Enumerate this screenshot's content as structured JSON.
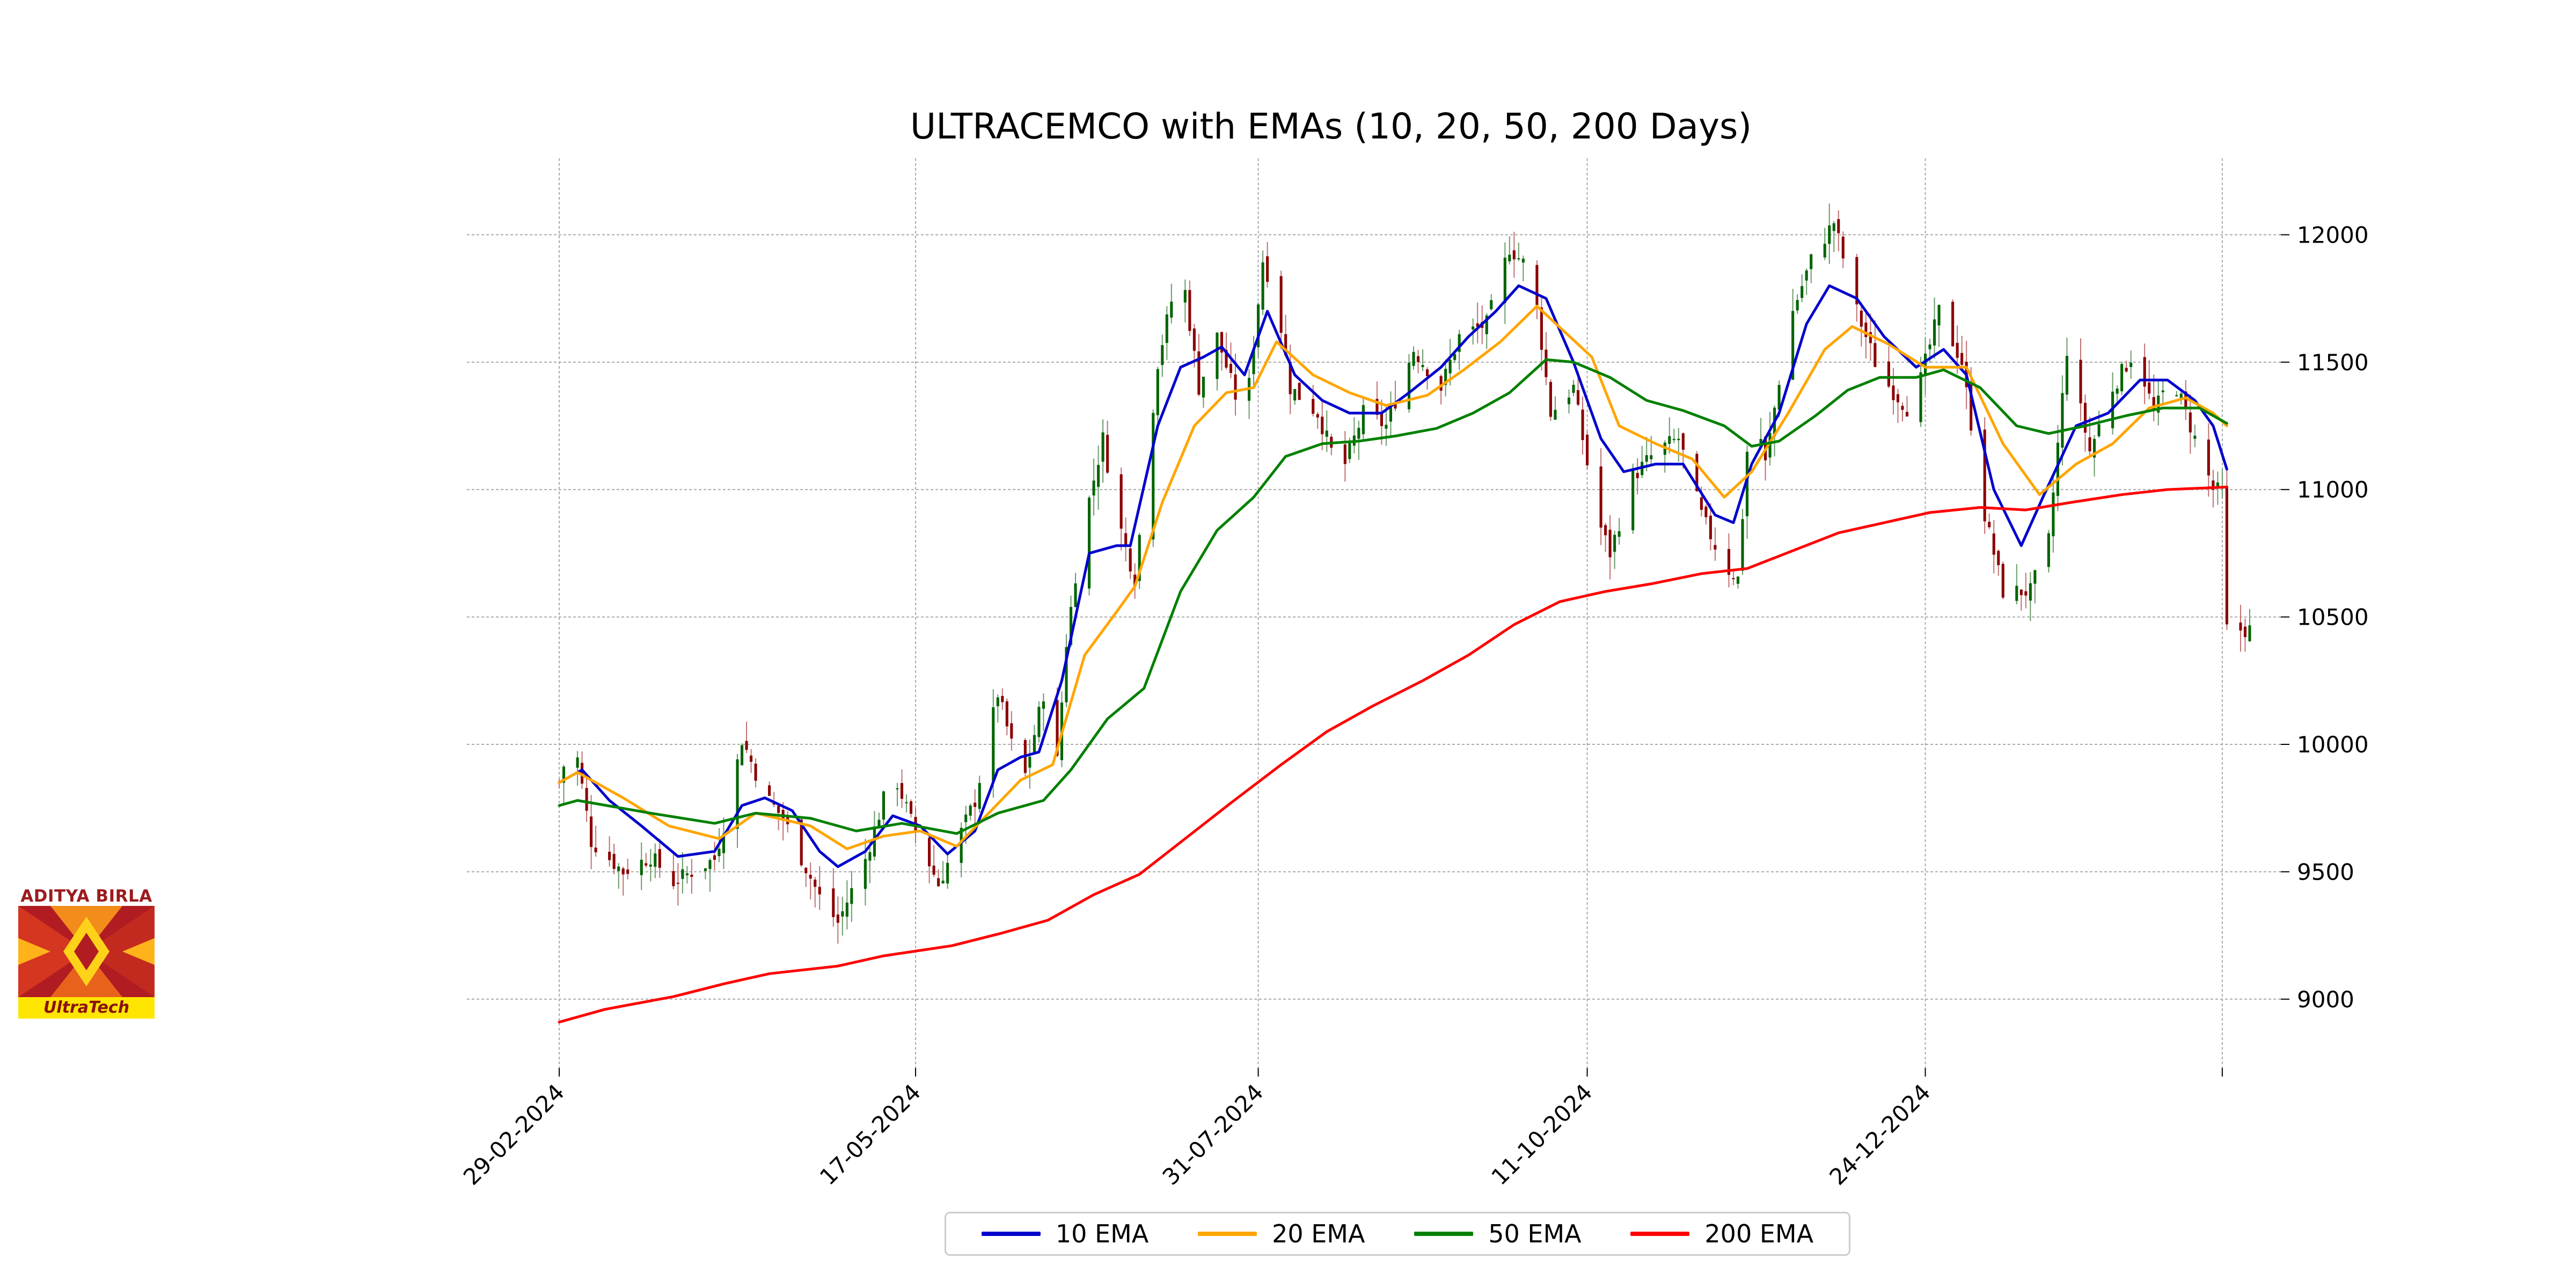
{
  "logo": {
    "top_text": "ADITYA BIRLA",
    "band_text": "UltraTech",
    "colors": {
      "red": "#b01c22",
      "orange": "#f28c1a",
      "yellow": "#ffe600"
    }
  },
  "chart_data": {
    "type": "candlestick",
    "title": "ULTRACEMCO with EMAs (10, 20, 50, 200 Days)",
    "xlabel": "",
    "ylabel": "",
    "x_range": [
      "2024-02-29",
      "2025-03-05"
    ],
    "ylim": [
      8730,
      12300
    ],
    "y_ticks": [
      9000,
      9500,
      10000,
      10500,
      11000,
      11500,
      12000
    ],
    "y_tick_labels": [
      "9000",
      "9500",
      "10000",
      "10500",
      "11000",
      "11500",
      "12000"
    ],
    "x_ticks": [
      "2024-02-29",
      "2024-05-17",
      "2024-07-31",
      "2024-10-11",
      "2024-12-24",
      "2025-02-27"
    ],
    "x_tick_labels": [
      "29-02-2024",
      "17-05-2024",
      "31-07-2024",
      "11-10-2024",
      "24-12-2024",
      ""
    ],
    "grid": true,
    "legend_position": "bottom-center",
    "candle_colors": {
      "up": "#006400",
      "down": "#8b0000"
    },
    "close_anchors": [
      [
        "2024-02-29",
        9850
      ],
      [
        "2024-03-03",
        10050
      ],
      [
        "2024-03-07",
        9620
      ],
      [
        "2024-03-14",
        9500
      ],
      [
        "2024-03-20",
        9560
      ],
      [
        "2024-03-25",
        9460
      ],
      [
        "2024-04-03",
        9550
      ],
      [
        "2024-04-06",
        9750
      ],
      [
        "2024-04-09",
        10020
      ],
      [
        "2024-04-14",
        9800
      ],
      [
        "2024-04-18",
        9710
      ],
      [
        "2024-04-26",
        9400
      ],
      [
        "2024-04-30",
        9300
      ],
      [
        "2024-05-06",
        9550
      ],
      [
        "2024-05-12",
        9900
      ],
      [
        "2024-05-16",
        9700
      ],
      [
        "2024-05-22",
        9450
      ],
      [
        "2024-05-30",
        9780
      ],
      [
        "2024-06-04",
        10200
      ],
      [
        "2024-06-07",
        10000
      ],
      [
        "2024-06-10",
        9880
      ],
      [
        "2024-06-14",
        10200
      ],
      [
        "2024-06-16",
        9700
      ],
      [
        "2024-06-19",
        10400
      ],
      [
        "2024-06-22",
        10800
      ],
      [
        "2024-06-27",
        11200
      ],
      [
        "2024-06-30",
        10900
      ],
      [
        "2024-07-04",
        10650
      ],
      [
        "2024-07-09",
        11500
      ],
      [
        "2024-07-14",
        11900
      ],
      [
        "2024-07-18",
        11400
      ],
      [
        "2024-07-22",
        11600
      ],
      [
        "2024-07-28",
        11250
      ],
      [
        "2024-08-01",
        11900
      ],
      [
        "2024-08-04",
        11750
      ],
      [
        "2024-08-07",
        11400
      ],
      [
        "2024-08-13",
        11300
      ],
      [
        "2024-08-18",
        11050
      ],
      [
        "2024-08-23",
        11300
      ],
      [
        "2024-08-28",
        11250
      ],
      [
        "2024-09-03",
        11550
      ],
      [
        "2024-09-09",
        11400
      ],
      [
        "2024-09-13",
        11600
      ],
      [
        "2024-09-19",
        11650
      ],
      [
        "2024-09-24",
        11950
      ],
      [
        "2024-09-29",
        11850
      ],
      [
        "2024-10-03",
        11300
      ],
      [
        "2024-10-08",
        11400
      ],
      [
        "2024-10-13",
        10900
      ],
      [
        "2024-10-16",
        10750
      ],
      [
        "2024-10-21",
        11050
      ],
      [
        "2024-10-26",
        11150
      ],
      [
        "2024-10-31",
        11200
      ],
      [
        "2024-11-05",
        10900
      ],
      [
        "2024-11-10",
        10700
      ],
      [
        "2024-11-13",
        10650
      ],
      [
        "2024-11-16",
        11400
      ],
      [
        "2024-11-19",
        11100
      ],
      [
        "2024-11-24",
        11650
      ],
      [
        "2024-11-29",
        11900
      ],
      [
        "2024-12-04",
        12050
      ],
      [
        "2024-12-09",
        11700
      ],
      [
        "2024-12-14",
        11450
      ],
      [
        "2024-12-21",
        11300
      ],
      [
        "2024-12-27",
        11700
      ],
      [
        "2025-01-01",
        11500
      ],
      [
        "2025-01-06",
        10900
      ],
      [
        "2025-01-10",
        10600
      ],
      [
        "2025-01-16",
        10600
      ],
      [
        "2025-01-20",
        10800
      ],
      [
        "2025-01-24",
        11550
      ],
      [
        "2025-01-29",
        11150
      ],
      [
        "2025-02-03",
        11400
      ],
      [
        "2025-02-08",
        11550
      ],
      [
        "2025-02-12",
        11300
      ],
      [
        "2025-02-16",
        11450
      ],
      [
        "2025-02-21",
        11200
      ],
      [
        "2025-02-25",
        11000
      ],
      [
        "2025-02-27",
        10990
      ],
      [
        "2025-02-28",
        10450
      ]
    ],
    "series": [
      {
        "name": "10 EMA",
        "color": "#0000cd",
        "points": [
          [
            "2024-02-29",
            9850
          ],
          [
            "2024-03-05",
            9900
          ],
          [
            "2024-03-11",
            9780
          ],
          [
            "2024-03-18",
            9680
          ],
          [
            "2024-03-26",
            9560
          ],
          [
            "2024-04-03",
            9580
          ],
          [
            "2024-04-09",
            9760
          ],
          [
            "2024-04-14",
            9790
          ],
          [
            "2024-04-20",
            9740
          ],
          [
            "2024-04-26",
            9580
          ],
          [
            "2024-04-30",
            9520
          ],
          [
            "2024-05-06",
            9580
          ],
          [
            "2024-05-12",
            9720
          ],
          [
            "2024-05-18",
            9680
          ],
          [
            "2024-05-24",
            9570
          ],
          [
            "2024-05-30",
            9660
          ],
          [
            "2024-06-04",
            9900
          ],
          [
            "2024-06-09",
            9950
          ],
          [
            "2024-06-13",
            9970
          ],
          [
            "2024-06-18",
            10250
          ],
          [
            "2024-06-24",
            10750
          ],
          [
            "2024-06-30",
            10780
          ],
          [
            "2024-07-03",
            10780
          ],
          [
            "2024-07-09",
            11250
          ],
          [
            "2024-07-14",
            11480
          ],
          [
            "2024-07-19",
            11520
          ],
          [
            "2024-07-23",
            11560
          ],
          [
            "2024-07-28",
            11450
          ],
          [
            "2024-08-02",
            11700
          ],
          [
            "2024-08-08",
            11450
          ],
          [
            "2024-08-14",
            11350
          ],
          [
            "2024-08-20",
            11300
          ],
          [
            "2024-08-27",
            11300
          ],
          [
            "2024-09-02",
            11380
          ],
          [
            "2024-09-09",
            11480
          ],
          [
            "2024-09-15",
            11600
          ],
          [
            "2024-09-21",
            11700
          ],
          [
            "2024-09-26",
            11800
          ],
          [
            "2024-10-02",
            11750
          ],
          [
            "2024-10-08",
            11500
          ],
          [
            "2024-10-14",
            11200
          ],
          [
            "2024-10-19",
            11070
          ],
          [
            "2024-10-26",
            11100
          ],
          [
            "2024-11-01",
            11100
          ],
          [
            "2024-11-08",
            10900
          ],
          [
            "2024-11-12",
            10870
          ],
          [
            "2024-11-16",
            11100
          ],
          [
            "2024-11-22",
            11300
          ],
          [
            "2024-11-28",
            11650
          ],
          [
            "2024-12-03",
            11800
          ],
          [
            "2024-12-09",
            11750
          ],
          [
            "2024-12-15",
            11600
          ],
          [
            "2024-12-22",
            11480
          ],
          [
            "2024-12-28",
            11550
          ],
          [
            "2025-01-02",
            11450
          ],
          [
            "2025-01-08",
            11000
          ],
          [
            "2025-01-14",
            10780
          ],
          [
            "2025-01-19",
            10980
          ],
          [
            "2025-01-26",
            11250
          ],
          [
            "2025-02-02",
            11300
          ],
          [
            "2025-02-09",
            11430
          ],
          [
            "2025-02-15",
            11430
          ],
          [
            "2025-02-21",
            11350
          ],
          [
            "2025-02-25",
            11250
          ],
          [
            "2025-02-28",
            11080
          ]
        ]
      },
      {
        "name": "20 EMA",
        "color": "#ffa500",
        "points": [
          [
            "2024-02-29",
            9850
          ],
          [
            "2024-03-04",
            9890
          ],
          [
            "2024-03-14",
            9790
          ],
          [
            "2024-03-24",
            9680
          ],
          [
            "2024-04-04",
            9630
          ],
          [
            "2024-04-12",
            9730
          ],
          [
            "2024-04-24",
            9680
          ],
          [
            "2024-05-02",
            9590
          ],
          [
            "2024-05-10",
            9640
          ],
          [
            "2024-05-18",
            9660
          ],
          [
            "2024-05-26",
            9600
          ],
          [
            "2024-06-02",
            9730
          ],
          [
            "2024-06-09",
            9860
          ],
          [
            "2024-06-16",
            9920
          ],
          [
            "2024-06-23",
            10350
          ],
          [
            "2024-06-30",
            10520
          ],
          [
            "2024-07-04",
            10620
          ],
          [
            "2024-07-10",
            10950
          ],
          [
            "2024-07-17",
            11250
          ],
          [
            "2024-07-24",
            11380
          ],
          [
            "2024-07-30",
            11400
          ],
          [
            "2024-08-04",
            11580
          ],
          [
            "2024-08-12",
            11450
          ],
          [
            "2024-08-20",
            11380
          ],
          [
            "2024-08-28",
            11330
          ],
          [
            "2024-09-06",
            11370
          ],
          [
            "2024-09-14",
            11470
          ],
          [
            "2024-09-22",
            11580
          ],
          [
            "2024-09-30",
            11720
          ],
          [
            "2024-10-06",
            11620
          ],
          [
            "2024-10-12",
            11520
          ],
          [
            "2024-10-18",
            11250
          ],
          [
            "2024-10-26",
            11180
          ],
          [
            "2024-11-03",
            11120
          ],
          [
            "2024-11-10",
            10970
          ],
          [
            "2024-11-16",
            11070
          ],
          [
            "2024-11-24",
            11300
          ],
          [
            "2024-12-02",
            11550
          ],
          [
            "2024-12-08",
            11640
          ],
          [
            "2024-12-16",
            11570
          ],
          [
            "2024-12-24",
            11480
          ],
          [
            "2025-01-02",
            11480
          ],
          [
            "2025-01-10",
            11180
          ],
          [
            "2025-01-18",
            10980
          ],
          [
            "2025-01-26",
            11100
          ],
          [
            "2025-02-03",
            11180
          ],
          [
            "2025-02-11",
            11320
          ],
          [
            "2025-02-19",
            11360
          ],
          [
            "2025-02-25",
            11300
          ],
          [
            "2025-02-28",
            11250
          ]
        ]
      },
      {
        "name": "50 EMA",
        "color": "#008000",
        "points": [
          [
            "2024-02-29",
            9760
          ],
          [
            "2024-03-04",
            9780
          ],
          [
            "2024-03-20",
            9730
          ],
          [
            "2024-04-03",
            9690
          ],
          [
            "2024-04-12",
            9730
          ],
          [
            "2024-04-24",
            9710
          ],
          [
            "2024-05-04",
            9660
          ],
          [
            "2024-05-14",
            9690
          ],
          [
            "2024-05-26",
            9650
          ],
          [
            "2024-06-04",
            9730
          ],
          [
            "2024-06-14",
            9780
          ],
          [
            "2024-06-20",
            9900
          ],
          [
            "2024-06-28",
            10100
          ],
          [
            "2024-07-06",
            10220
          ],
          [
            "2024-07-14",
            10600
          ],
          [
            "2024-07-22",
            10840
          ],
          [
            "2024-07-30",
            10970
          ],
          [
            "2024-08-06",
            11130
          ],
          [
            "2024-08-14",
            11180
          ],
          [
            "2024-08-22",
            11190
          ],
          [
            "2024-08-30",
            11210
          ],
          [
            "2024-09-08",
            11240
          ],
          [
            "2024-09-16",
            11300
          ],
          [
            "2024-09-24",
            11380
          ],
          [
            "2024-10-02",
            11510
          ],
          [
            "2024-10-08",
            11500
          ],
          [
            "2024-10-16",
            11440
          ],
          [
            "2024-10-24",
            11350
          ],
          [
            "2024-11-01",
            11310
          ],
          [
            "2024-11-10",
            11250
          ],
          [
            "2024-11-16",
            11170
          ],
          [
            "2024-11-22",
            11190
          ],
          [
            "2024-11-30",
            11290
          ],
          [
            "2024-12-07",
            11390
          ],
          [
            "2024-12-14",
            11440
          ],
          [
            "2024-12-22",
            11440
          ],
          [
            "2024-12-28",
            11470
          ],
          [
            "2025-01-05",
            11400
          ],
          [
            "2025-01-13",
            11250
          ],
          [
            "2025-01-20",
            11220
          ],
          [
            "2025-01-28",
            11250
          ],
          [
            "2025-02-06",
            11290
          ],
          [
            "2025-02-14",
            11320
          ],
          [
            "2025-02-22",
            11320
          ],
          [
            "2025-02-28",
            11260
          ]
        ]
      },
      {
        "name": "200 EMA",
        "color": "#ff0000",
        "points": [
          [
            "2024-02-29",
            8910
          ],
          [
            "2024-03-10",
            8960
          ],
          [
            "2024-03-25",
            9010
          ],
          [
            "2024-04-05",
            9060
          ],
          [
            "2024-04-15",
            9100
          ],
          [
            "2024-04-30",
            9130
          ],
          [
            "2024-05-10",
            9170
          ],
          [
            "2024-05-25",
            9210
          ],
          [
            "2024-06-05",
            9260
          ],
          [
            "2024-06-15",
            9310
          ],
          [
            "2024-06-25",
            9410
          ],
          [
            "2024-07-05",
            9490
          ],
          [
            "2024-07-15",
            9630
          ],
          [
            "2024-07-25",
            9770
          ],
          [
            "2024-08-05",
            9920
          ],
          [
            "2024-08-15",
            10050
          ],
          [
            "2024-08-25",
            10150
          ],
          [
            "2024-09-05",
            10250
          ],
          [
            "2024-09-15",
            10350
          ],
          [
            "2024-09-25",
            10470
          ],
          [
            "2024-10-05",
            10560
          ],
          [
            "2024-10-15",
            10600
          ],
          [
            "2024-10-25",
            10630
          ],
          [
            "2024-11-05",
            10670
          ],
          [
            "2024-11-15",
            10690
          ],
          [
            "2024-11-25",
            10760
          ],
          [
            "2024-12-05",
            10830
          ],
          [
            "2024-12-15",
            10870
          ],
          [
            "2024-12-25",
            10910
          ],
          [
            "2025-01-05",
            10930
          ],
          [
            "2025-01-15",
            10920
          ],
          [
            "2025-01-25",
            10950
          ],
          [
            "2025-02-05",
            10980
          ],
          [
            "2025-02-15",
            11000
          ],
          [
            "2025-02-28",
            11010
          ]
        ]
      }
    ]
  }
}
